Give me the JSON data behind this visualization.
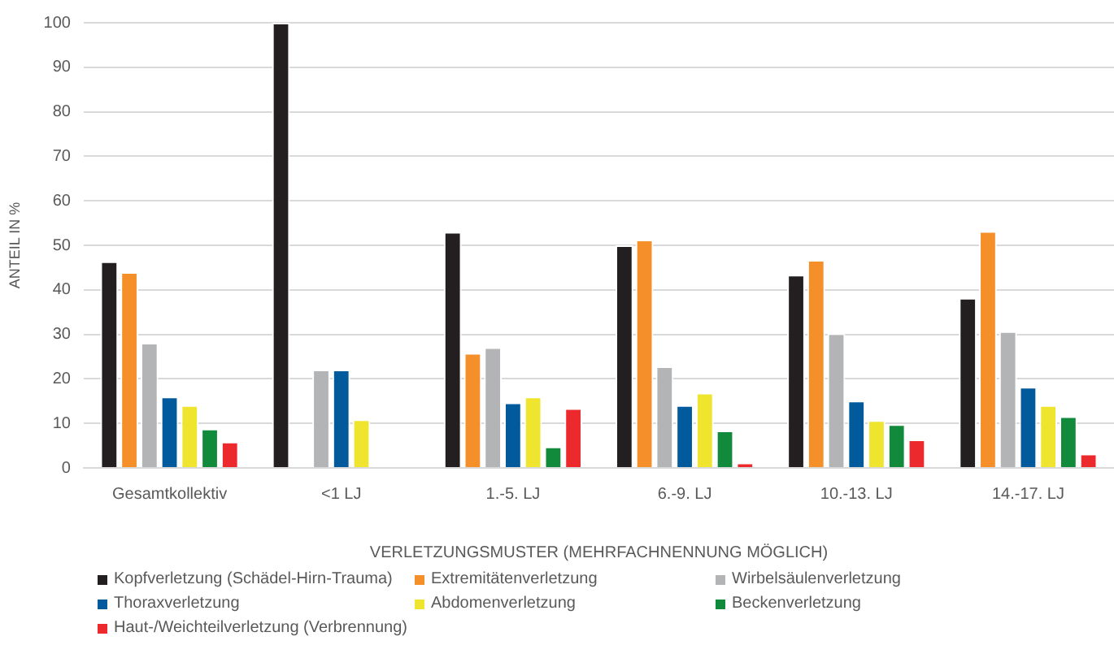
{
  "chart_data": {
    "type": "bar",
    "xlabel": "VERLETZUNGSMUSTER (MEHRFACHNENNUNG MÖGLICH)",
    "ylabel": "ANTEIL IN %",
    "categories": [
      "Gesamtkollektiv",
      "<1 LJ",
      "1.-5. LJ",
      "6.-9. LJ",
      "10.-13. LJ",
      "14.-17. LJ"
    ],
    "series": [
      {
        "name": "Kopfverletzung (Schädel-Hirn-Trauma)",
        "color": "#231f20",
        "values": [
          46.4,
          100,
          53,
          50,
          43.4,
          38.2
        ]
      },
      {
        "name": "Extremitätenverletzung",
        "color": "#f58f2a",
        "values": [
          44,
          0,
          25.8,
          51.3,
          46.7,
          53.2
        ]
      },
      {
        "name": "Wirbelsäulenverletzung",
        "color": "#b3b4b6",
        "values": [
          28.1,
          22.1,
          27.1,
          22.8,
          30.2,
          30.7
        ]
      },
      {
        "name": "Thoraxverletzung",
        "color": "#005a9c",
        "values": [
          16,
          22.1,
          14.7,
          14.1,
          15.1,
          18.2
        ]
      },
      {
        "name": "Abdomenverletzung",
        "color": "#f0e52e",
        "values": [
          14.1,
          10.9,
          16,
          16.9,
          10.7,
          14.1
        ]
      },
      {
        "name": "Beckenverletzung",
        "color": "#128a3c",
        "values": [
          8.8,
          0,
          4.8,
          8.4,
          9.8,
          11.6
        ]
      },
      {
        "name": "Haut-/Weichteilverletzung (Verbrennung)",
        "color": "#ec2a2e",
        "values": [
          5.9,
          0,
          13.4,
          1.2,
          6.4,
          3.2
        ]
      }
    ],
    "ylim": [
      0,
      100
    ],
    "yticks": [
      0,
      10,
      20,
      30,
      40,
      50,
      60,
      70,
      80,
      90,
      100
    ],
    "grid": "y",
    "legend": "bottom"
  }
}
